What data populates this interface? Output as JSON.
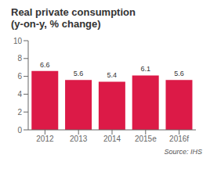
{
  "chart_data": {
    "type": "bar",
    "title": "Real private consumption",
    "subtitle": "(y-on-y, % change)",
    "categories": [
      "2012",
      "2013",
      "2014",
      "2015e",
      "2016f"
    ],
    "values": [
      6.6,
      5.6,
      5.4,
      6.1,
      5.6
    ],
    "color": "#dc1a47",
    "ylim": [
      0,
      10
    ],
    "yticks": [
      0,
      2,
      4,
      6,
      8,
      10
    ],
    "grid": false,
    "data_labels": true,
    "annotations": [
      "Source: IHS"
    ]
  }
}
